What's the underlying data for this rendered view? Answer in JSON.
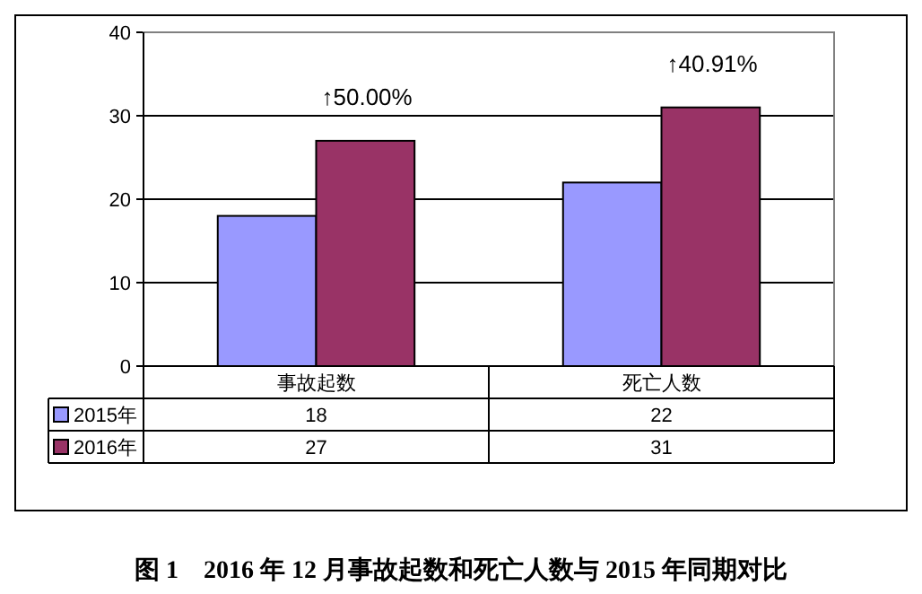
{
  "chart_data": {
    "type": "bar",
    "title": "图 1　2016 年 12 月事故起数和死亡人数与 2015 年同期对比",
    "categories": [
      "事故起数",
      "死亡人数"
    ],
    "series": [
      {
        "name": "2015年",
        "color": "#9999ff",
        "values": [
          18,
          22
        ]
      },
      {
        "name": "2016年",
        "color": "#993366",
        "values": [
          27,
          31
        ]
      }
    ],
    "ylim": [
      0,
      40
    ],
    "yticks": [
      0,
      10,
      20,
      30,
      40
    ],
    "grid": "y",
    "data_labels": true,
    "legend": "bottom left",
    "annotations": [
      "↑50.00%",
      "↑40.91%"
    ]
  }
}
